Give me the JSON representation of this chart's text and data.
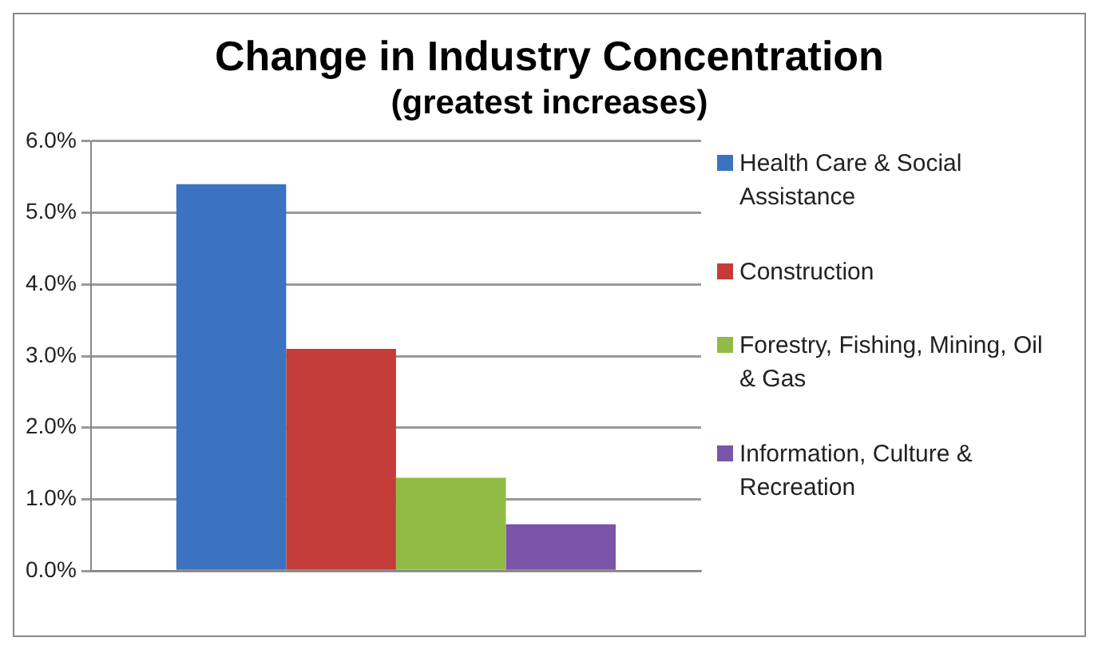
{
  "chart_data": {
    "type": "bar",
    "title": "Change in Industry Concentration",
    "subtitle": "(greatest increases)",
    "categories": [
      null
    ],
    "series": [
      {
        "name": "Health Care & Social Assistance",
        "color": "#3b73c0",
        "values": [
          5.4
        ]
      },
      {
        "name": "Construction",
        "color": "#c43d3a",
        "values": [
          3.1
        ]
      },
      {
        "name": "Forestry, Fishing, Mining, Oil & Gas",
        "color": "#92bb45",
        "values": [
          1.3
        ]
      },
      {
        "name": "Information, Culture & Recreation",
        "color": "#7a55a8",
        "values": [
          0.65
        ]
      }
    ],
    "ylim": [
      0,
      6
    ],
    "yticks": [
      {
        "value": 0,
        "label": "0.0%"
      },
      {
        "value": 1,
        "label": "1.0%"
      },
      {
        "value": 2,
        "label": "2.0%"
      },
      {
        "value": 3,
        "label": "3.0%"
      },
      {
        "value": 4,
        "label": "4.0%"
      },
      {
        "value": 5,
        "label": "5.0%"
      },
      {
        "value": 6,
        "label": "6.0%"
      }
    ],
    "grid": "y",
    "legend": "right"
  }
}
